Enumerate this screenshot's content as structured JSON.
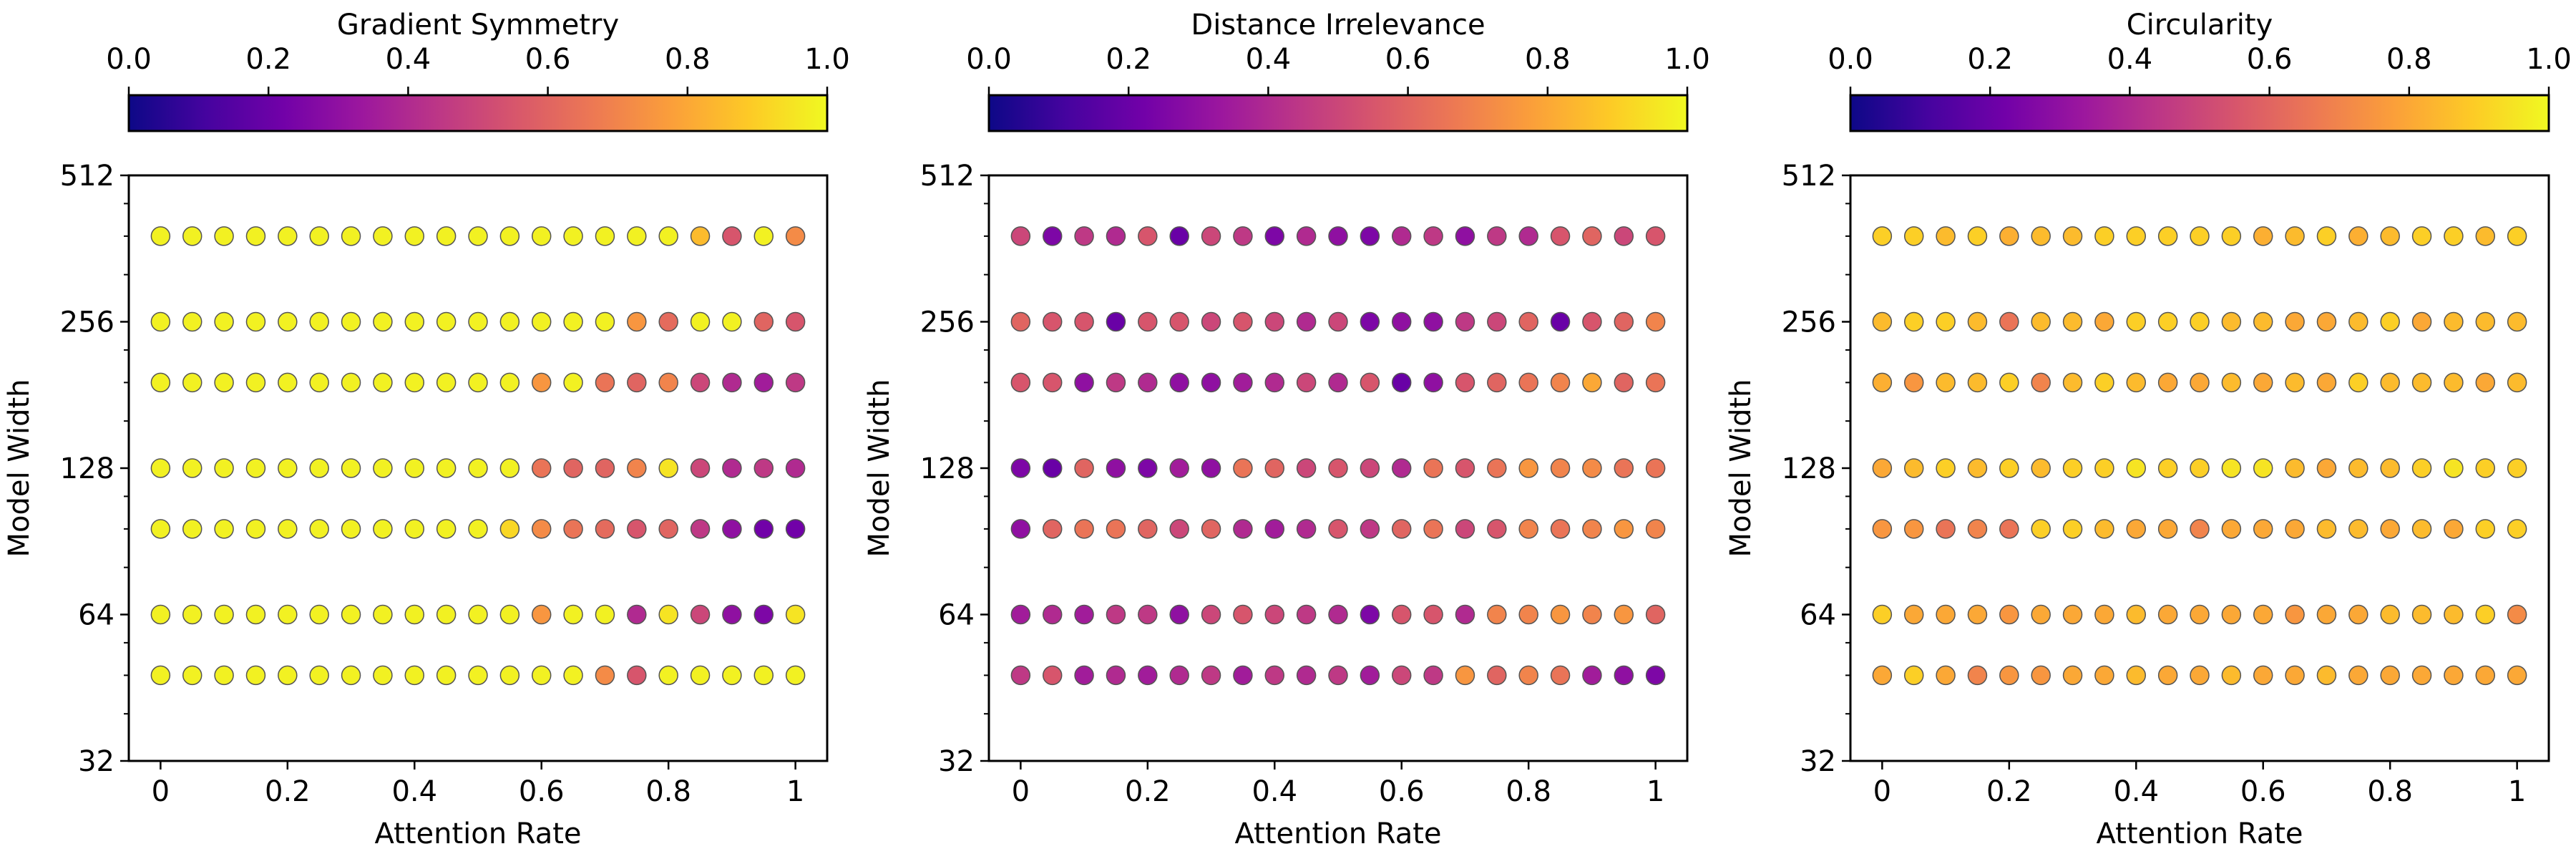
{
  "figure": {
    "colormap": "plasma",
    "colormap_stops": [
      "#0d0887",
      "#46039f",
      "#7201a8",
      "#9c179e",
      "#bd3786",
      "#d8576b",
      "#ed7953",
      "#fb9f3a",
      "#fdca26",
      "#f0f921"
    ]
  },
  "chart_data": [
    {
      "type": "scatter",
      "title": "Gradient Symmetry",
      "colorbar_label": "Gradient Symmetry",
      "colorbar_ticks": [
        "0.0",
        "0.2",
        "0.4",
        "0.6",
        "0.8",
        "1.0"
      ],
      "xlabel": "Attention Rate",
      "ylabel": "Model Width",
      "x_ticks": [
        "0",
        "0.2",
        "0.4",
        "0.6",
        "0.8",
        "1"
      ],
      "y_ticks": [
        "32",
        "64",
        "128",
        "256",
        "512"
      ],
      "y_scale": "log2",
      "xlim": [
        -0.05,
        1.05
      ],
      "ylim": [
        32,
        512
      ],
      "x": [
        0,
        0.05,
        0.1,
        0.15,
        0.2,
        0.25,
        0.3,
        0.35,
        0.4,
        0.45,
        0.5,
        0.55,
        0.6,
        0.65,
        0.7,
        0.75,
        0.8,
        0.85,
        0.9,
        0.95,
        1.0
      ],
      "y": [
        48,
        64,
        96,
        128,
        192,
        256,
        384
      ],
      "values": [
        [
          0.98,
          0.98,
          0.98,
          0.98,
          0.98,
          0.98,
          0.98,
          0.98,
          0.98,
          0.98,
          0.98,
          0.98,
          0.98,
          0.98,
          0.72,
          0.55,
          0.98,
          0.98,
          0.98,
          0.98,
          0.98
        ],
        [
          0.98,
          0.98,
          0.98,
          0.98,
          0.98,
          0.98,
          0.98,
          0.98,
          0.98,
          0.98,
          0.98,
          0.98,
          0.75,
          0.98,
          0.98,
          0.4,
          0.95,
          0.5,
          0.3,
          0.25,
          0.95
        ],
        [
          0.98,
          0.98,
          0.98,
          0.98,
          0.98,
          0.98,
          0.98,
          0.98,
          0.98,
          0.98,
          0.98,
          0.92,
          0.72,
          0.65,
          0.62,
          0.55,
          0.6,
          0.45,
          0.3,
          0.22,
          0.22
        ],
        [
          0.98,
          0.98,
          0.98,
          0.98,
          0.98,
          0.98,
          0.98,
          0.98,
          0.98,
          0.98,
          0.98,
          0.98,
          0.65,
          0.6,
          0.6,
          0.7,
          0.95,
          0.5,
          0.4,
          0.45,
          0.4
        ],
        [
          0.98,
          0.98,
          0.98,
          0.98,
          0.98,
          0.98,
          0.98,
          0.98,
          0.98,
          0.98,
          0.98,
          0.98,
          0.75,
          0.98,
          0.65,
          0.6,
          0.7,
          0.5,
          0.4,
          0.35,
          0.45
        ],
        [
          0.98,
          0.98,
          0.98,
          0.98,
          0.98,
          0.98,
          0.98,
          0.98,
          0.98,
          0.98,
          0.98,
          0.98,
          0.98,
          0.98,
          0.98,
          0.75,
          0.62,
          0.98,
          0.98,
          0.6,
          0.55
        ],
        [
          0.98,
          0.98,
          0.98,
          0.98,
          0.98,
          0.98,
          0.98,
          0.98,
          0.98,
          0.98,
          0.98,
          0.98,
          0.98,
          0.98,
          0.98,
          0.98,
          0.98,
          0.85,
          0.55,
          0.98,
          0.72
        ]
      ]
    },
    {
      "type": "scatter",
      "title": "Distance Irrelevance",
      "colorbar_label": "Distance Irrelevance",
      "colorbar_ticks": [
        "0.0",
        "0.2",
        "0.4",
        "0.6",
        "0.8",
        "1.0"
      ],
      "xlabel": "Attention Rate",
      "ylabel": "Model Width",
      "x_ticks": [
        "0",
        "0.2",
        "0.4",
        "0.6",
        "0.8",
        "1"
      ],
      "y_ticks": [
        "32",
        "64",
        "128",
        "256",
        "512"
      ],
      "y_scale": "log2",
      "xlim": [
        -0.05,
        1.05
      ],
      "ylim": [
        32,
        512
      ],
      "x": [
        0,
        0.05,
        0.1,
        0.15,
        0.2,
        0.25,
        0.3,
        0.35,
        0.4,
        0.45,
        0.5,
        0.55,
        0.6,
        0.65,
        0.7,
        0.75,
        0.8,
        0.85,
        0.9,
        0.95,
        1.0
      ],
      "y": [
        48,
        64,
        96,
        128,
        192,
        256,
        384
      ],
      "values": [
        [
          0.45,
          0.55,
          0.35,
          0.4,
          0.35,
          0.4,
          0.45,
          0.35,
          0.45,
          0.4,
          0.45,
          0.35,
          0.5,
          0.45,
          0.75,
          0.6,
          0.7,
          0.65,
          0.35,
          0.3,
          0.25
        ],
        [
          0.35,
          0.4,
          0.35,
          0.45,
          0.45,
          0.3,
          0.5,
          0.55,
          0.5,
          0.45,
          0.4,
          0.25,
          0.55,
          0.55,
          0.4,
          0.7,
          0.7,
          0.75,
          0.7,
          0.75,
          0.6
        ],
        [
          0.3,
          0.6,
          0.65,
          0.65,
          0.6,
          0.5,
          0.6,
          0.4,
          0.35,
          0.4,
          0.55,
          0.45,
          0.6,
          0.65,
          0.5,
          0.55,
          0.7,
          0.65,
          0.7,
          0.75,
          0.7
        ],
        [
          0.25,
          0.2,
          0.6,
          0.3,
          0.25,
          0.35,
          0.3,
          0.65,
          0.6,
          0.5,
          0.55,
          0.5,
          0.4,
          0.65,
          0.55,
          0.65,
          0.75,
          0.7,
          0.72,
          0.65,
          0.65
        ],
        [
          0.55,
          0.55,
          0.3,
          0.45,
          0.4,
          0.3,
          0.3,
          0.35,
          0.4,
          0.5,
          0.4,
          0.55,
          0.2,
          0.3,
          0.55,
          0.6,
          0.65,
          0.7,
          0.8,
          0.6,
          0.65
        ],
        [
          0.6,
          0.55,
          0.55,
          0.2,
          0.55,
          0.55,
          0.5,
          0.55,
          0.5,
          0.4,
          0.5,
          0.25,
          0.3,
          0.3,
          0.45,
          0.5,
          0.6,
          0.2,
          0.55,
          0.6,
          0.7
        ],
        [
          0.5,
          0.25,
          0.45,
          0.4,
          0.55,
          0.2,
          0.5,
          0.45,
          0.25,
          0.4,
          0.3,
          0.25,
          0.4,
          0.45,
          0.3,
          0.45,
          0.4,
          0.55,
          0.6,
          0.5,
          0.55
        ]
      ]
    },
    {
      "type": "scatter",
      "title": "Circularity",
      "colorbar_label": "Circularity",
      "colorbar_ticks": [
        "0.0",
        "0.2",
        "0.4",
        "0.6",
        "0.8",
        "1.0"
      ],
      "xlabel": "Attention Rate",
      "ylabel": "Model Width",
      "x_ticks": [
        "0",
        "0.2",
        "0.4",
        "0.6",
        "0.8",
        "1"
      ],
      "y_ticks": [
        "32",
        "64",
        "128",
        "256",
        "512"
      ],
      "y_scale": "log2",
      "xlim": [
        -0.05,
        1.05
      ],
      "ylim": [
        32,
        512
      ],
      "x": [
        0,
        0.05,
        0.1,
        0.15,
        0.2,
        0.25,
        0.3,
        0.35,
        0.4,
        0.45,
        0.5,
        0.55,
        0.6,
        0.65,
        0.7,
        0.75,
        0.8,
        0.85,
        0.9,
        0.95,
        1.0
      ],
      "y": [
        48,
        64,
        96,
        128,
        192,
        256,
        384
      ],
      "values": [
        [
          0.8,
          0.9,
          0.8,
          0.7,
          0.75,
          0.75,
          0.8,
          0.8,
          0.85,
          0.8,
          0.8,
          0.85,
          0.8,
          0.8,
          0.85,
          0.8,
          0.8,
          0.8,
          0.8,
          0.8,
          0.8
        ],
        [
          0.9,
          0.8,
          0.8,
          0.8,
          0.75,
          0.8,
          0.8,
          0.8,
          0.85,
          0.8,
          0.8,
          0.8,
          0.8,
          0.75,
          0.8,
          0.8,
          0.85,
          0.85,
          0.85,
          0.9,
          0.72
        ],
        [
          0.75,
          0.75,
          0.65,
          0.7,
          0.65,
          0.9,
          0.9,
          0.85,
          0.8,
          0.8,
          0.7,
          0.8,
          0.8,
          0.8,
          0.85,
          0.85,
          0.8,
          0.85,
          0.8,
          0.9,
          0.9
        ],
        [
          0.8,
          0.85,
          0.9,
          0.85,
          0.9,
          0.85,
          0.9,
          0.9,
          0.95,
          0.9,
          0.9,
          0.95,
          0.95,
          0.85,
          0.8,
          0.85,
          0.85,
          0.9,
          0.95,
          0.9,
          0.9
        ],
        [
          0.82,
          0.75,
          0.85,
          0.85,
          0.9,
          0.7,
          0.85,
          0.9,
          0.85,
          0.8,
          0.8,
          0.85,
          0.8,
          0.85,
          0.8,
          0.9,
          0.85,
          0.85,
          0.85,
          0.8,
          0.85
        ],
        [
          0.85,
          0.9,
          0.9,
          0.85,
          0.65,
          0.85,
          0.85,
          0.8,
          0.9,
          0.9,
          0.9,
          0.85,
          0.85,
          0.8,
          0.8,
          0.85,
          0.9,
          0.8,
          0.85,
          0.85,
          0.85
        ],
        [
          0.9,
          0.9,
          0.85,
          0.9,
          0.82,
          0.85,
          0.85,
          0.9,
          0.9,
          0.9,
          0.9,
          0.9,
          0.82,
          0.85,
          0.9,
          0.82,
          0.85,
          0.9,
          0.9,
          0.85,
          0.9
        ]
      ]
    }
  ]
}
